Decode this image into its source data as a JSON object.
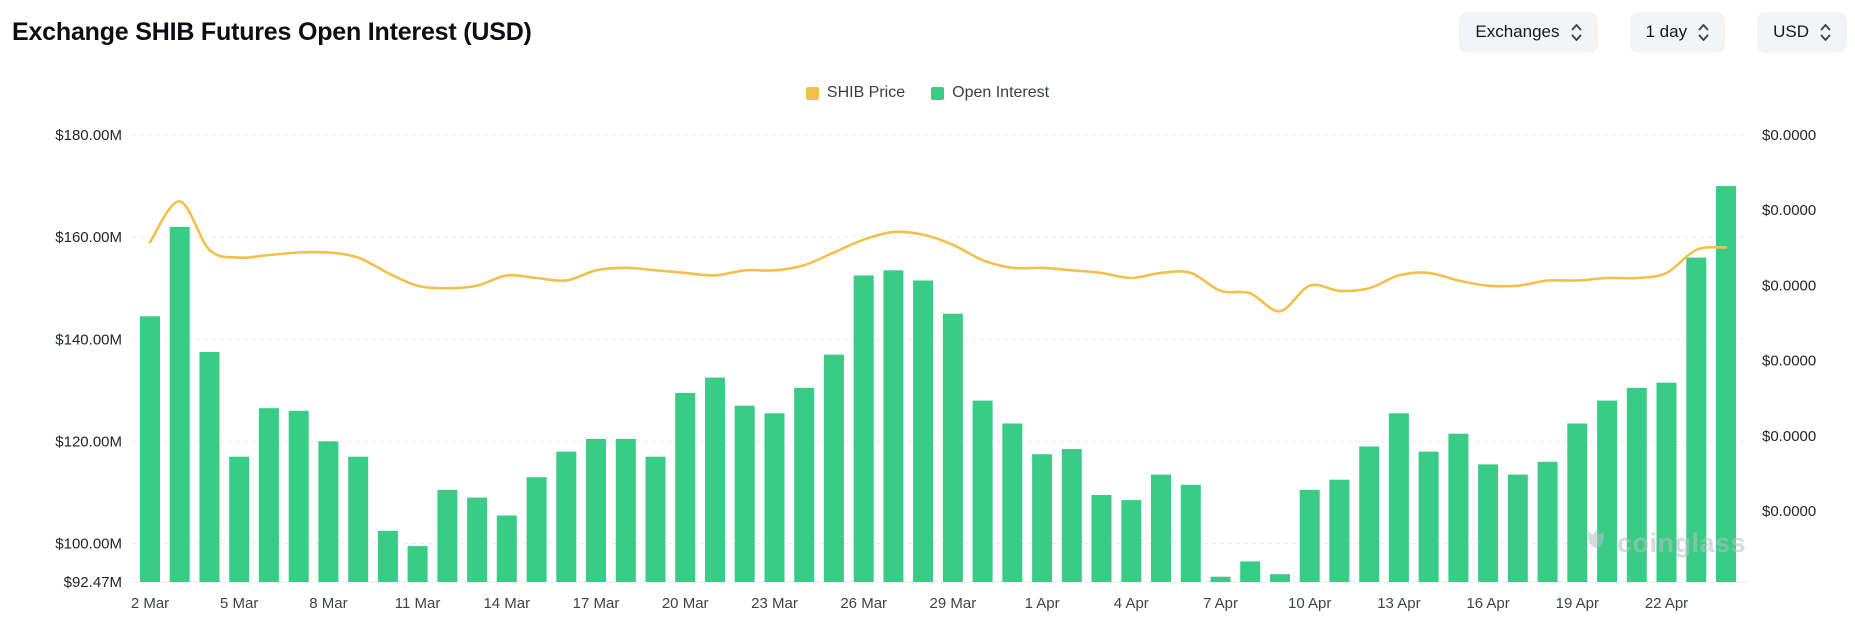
{
  "header": {
    "title": "Exchange SHIB Futures Open Interest (USD)"
  },
  "controls": [
    {
      "label": "Exchanges"
    },
    {
      "label": "1 day"
    },
    {
      "label": "USD"
    }
  ],
  "legend": {
    "items": [
      {
        "label": "SHIB Price",
        "color": "#f3c14b"
      },
      {
        "label": "Open Interest",
        "color": "#38cc86"
      }
    ]
  },
  "watermark": {
    "text": "coinglass"
  },
  "colors": {
    "bar_green": "#38cc86",
    "line_yellow": "#f3c14b",
    "grid": "#e8eaed",
    "axis_text": "#23262b",
    "x_text": "#3f434a",
    "button_bg": "#f3f4f6",
    "title_text": "#0d0e12"
  },
  "chart_data": {
    "type": "bar",
    "combo": "bar+line",
    "title": "Exchange SHIB Futures Open Interest (USD)",
    "legend_position": "top-center",
    "grid": {
      "horizontal": "dashed"
    },
    "categories": [
      "2 Mar",
      "3 Mar",
      "4 Mar",
      "5 Mar",
      "6 Mar",
      "7 Mar",
      "8 Mar",
      "9 Mar",
      "10 Mar",
      "11 Mar",
      "12 Mar",
      "13 Mar",
      "14 Mar",
      "15 Mar",
      "16 Mar",
      "17 Mar",
      "18 Mar",
      "19 Mar",
      "20 Mar",
      "21 Mar",
      "22 Mar",
      "23 Mar",
      "24 Mar",
      "25 Mar",
      "26 Mar",
      "27 Mar",
      "28 Mar",
      "29 Mar",
      "30 Mar",
      "31 Mar",
      "1 Apr",
      "2 Apr",
      "3 Apr",
      "4 Apr",
      "5 Apr",
      "6 Apr",
      "7 Apr",
      "8 Apr",
      "9 Apr",
      "10 Apr",
      "11 Apr",
      "12 Apr",
      "13 Apr",
      "14 Apr",
      "15 Apr",
      "16 Apr",
      "17 Apr",
      "18 Apr",
      "19 Apr",
      "20 Apr",
      "21 Apr",
      "22 Apr",
      "23 Apr",
      "24 Apr"
    ],
    "series": [
      {
        "name": "Open Interest",
        "type": "bar",
        "yaxis": "left",
        "color": "#38cc86",
        "unit": "USD millions",
        "values": [
          144.5,
          162,
          137.5,
          117,
          126.5,
          126,
          120,
          117,
          102.5,
          99.5,
          110.5,
          109,
          105.5,
          113,
          118,
          120.5,
          120.5,
          117,
          129.5,
          132.5,
          127,
          125.5,
          130.5,
          137,
          152.5,
          153.5,
          151.5,
          145,
          128,
          123.5,
          117.5,
          118.5,
          109.5,
          108.5,
          113.5,
          111.5,
          93.5,
          96.5,
          94,
          110.5,
          112.5,
          119,
          125.5,
          118,
          121.5,
          115.5,
          113.5,
          116,
          123.5,
          128,
          130.5,
          131.5,
          156,
          170
        ]
      },
      {
        "name": "SHIB Price",
        "type": "line",
        "yaxis": "right",
        "color": "#f3c14b",
        "note": "right-axis tick labels all render as $0.0000 in the screenshot; line vertical positions estimated as left-axis $M equivalents",
        "values_mapped_to_left_axis": [
          159,
          167,
          157.5,
          156,
          156.5,
          157,
          157,
          156,
          153,
          150.5,
          150,
          150.5,
          152.5,
          152,
          151.5,
          153.5,
          154,
          153.5,
          153,
          152.5,
          153.5,
          153.5,
          154.5,
          157,
          159.5,
          161,
          160.5,
          158.5,
          155.5,
          154,
          154,
          153.5,
          153,
          152,
          153,
          153,
          149.5,
          149,
          145.5,
          150.5,
          149.5,
          150,
          152.5,
          153,
          151.5,
          150.5,
          150.5,
          151.5,
          151.5,
          152,
          152,
          153,
          157.5,
          158
        ]
      }
    ],
    "left_axis": {
      "unit": "USD (millions)",
      "min": 92.47,
      "max": 180,
      "ticks": [
        {
          "label": "$180.00M",
          "value": 180
        },
        {
          "label": "$160.00M",
          "value": 160
        },
        {
          "label": "$140.00M",
          "value": 140
        },
        {
          "label": "$120.00M",
          "value": 120
        },
        {
          "label": "$100.00M",
          "value": 100
        },
        {
          "label": "$92.47M",
          "value": 92.47
        }
      ]
    },
    "right_axis": {
      "tick_labels": [
        "$0.0000",
        "$0.0000",
        "$0.0000",
        "$0.0000",
        "$0.0000",
        "$0.0000"
      ]
    },
    "x_axis": {
      "tick_labels": [
        "2 Mar",
        "5 Mar",
        "8 Mar",
        "11 Mar",
        "14 Mar",
        "17 Mar",
        "20 Mar",
        "23 Mar",
        "26 Mar",
        "29 Mar",
        "1 Apr",
        "4 Apr",
        "7 Apr",
        "10 Apr",
        "13 Apr",
        "16 Apr",
        "19 Apr",
        "22 Apr"
      ],
      "tick_every": 3
    }
  }
}
